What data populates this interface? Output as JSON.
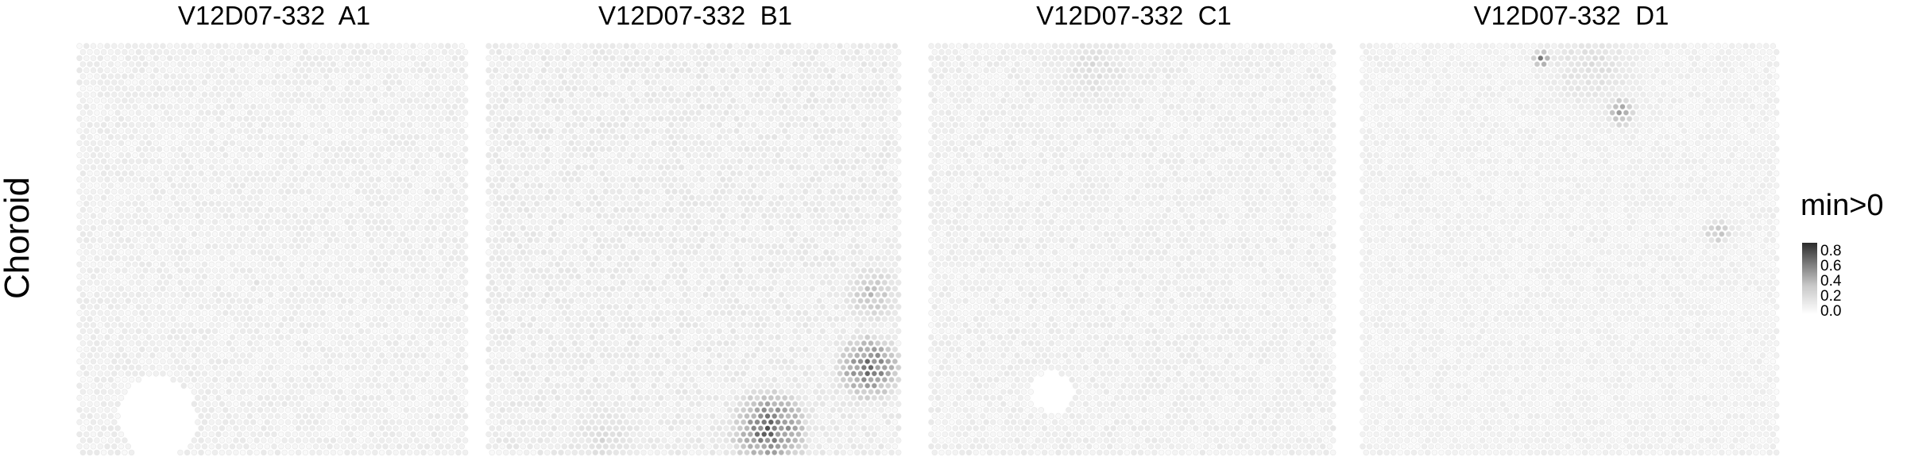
{
  "chart_data": {
    "type": "heatmap",
    "row_label": "Choroid",
    "legend": {
      "title": "min>0",
      "ticks": [
        "0.8",
        "0.6",
        "0.4",
        "0.2",
        "0.0"
      ],
      "low_color": "#ffffff",
      "high_color": "#2b2b2b",
      "range": [
        0,
        0.9
      ]
    },
    "panels": [
      {
        "title": "V12D07-332  A1",
        "background_level": 0.06,
        "holes": [
          {
            "x": 0.2,
            "y": 0.9,
            "r": 0.1
          }
        ],
        "hotspots": [
          {
            "x": 0.45,
            "y": 0.58,
            "r": 0.02,
            "value": 0.25
          }
        ]
      },
      {
        "title": "V12D07-332  B1",
        "background_level": 0.07,
        "holes": [],
        "hotspots": [
          {
            "x": 0.68,
            "y": 0.93,
            "r": 0.12,
            "value": 0.85
          },
          {
            "x": 0.92,
            "y": 0.78,
            "r": 0.1,
            "value": 0.8
          },
          {
            "x": 0.93,
            "y": 0.6,
            "r": 0.1,
            "value": 0.35
          },
          {
            "x": 0.28,
            "y": 0.95,
            "r": 0.15,
            "value": 0.2
          }
        ]
      },
      {
        "title": "V12D07-332  C1",
        "background_level": 0.06,
        "holes": [
          {
            "x": 0.3,
            "y": 0.84,
            "r": 0.05
          }
        ],
        "hotspots": [
          {
            "x": 0.4,
            "y": 0.05,
            "r": 0.2,
            "value": 0.18
          }
        ]
      },
      {
        "title": "V12D07-332  D1",
        "background_level": 0.05,
        "holes": [],
        "hotspots": [
          {
            "x": 0.43,
            "y": 0.03,
            "r": 0.03,
            "value": 0.7
          },
          {
            "x": 0.62,
            "y": 0.16,
            "r": 0.05,
            "value": 0.5
          },
          {
            "x": 0.55,
            "y": 0.05,
            "r": 0.2,
            "value": 0.18
          },
          {
            "x": 0.85,
            "y": 0.45,
            "r": 0.05,
            "value": 0.35
          }
        ]
      }
    ]
  }
}
